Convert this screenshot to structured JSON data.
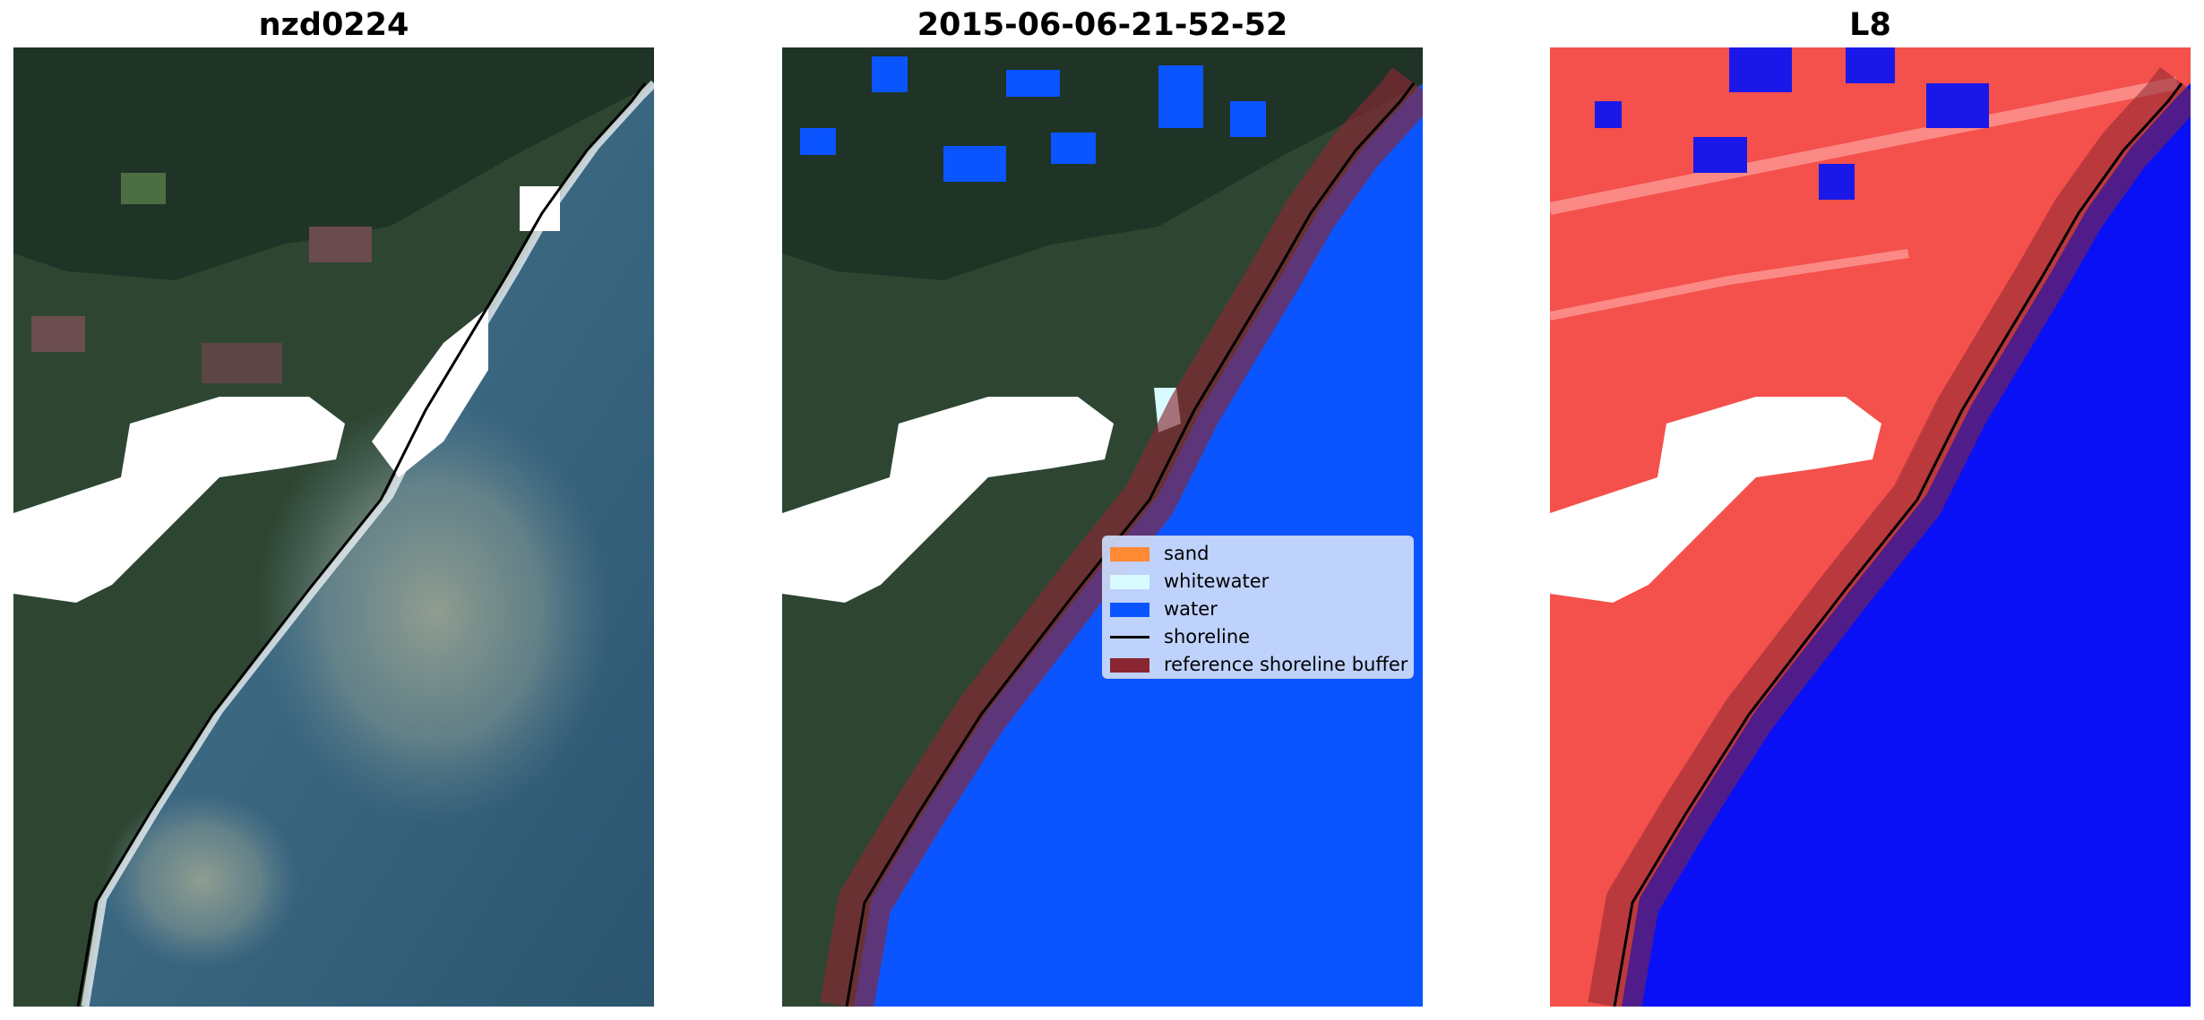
{
  "panels": [
    {
      "title": "nzd0224"
    },
    {
      "title": "2015-06-06-21-52-52"
    },
    {
      "title": "L8"
    }
  ],
  "legend": {
    "items": [
      {
        "label": "sand",
        "color": "#ff8a33",
        "kind": "patch"
      },
      {
        "label": "whitewater",
        "color": "#d8fbff",
        "kind": "patch"
      },
      {
        "label": "water",
        "color": "#0a55ff",
        "kind": "patch"
      },
      {
        "label": "shoreline",
        "color": "#000000",
        "kind": "line"
      },
      {
        "label": "reference shoreline buffer",
        "color": "#8a2632",
        "kind": "patch"
      }
    ]
  },
  "colors": {
    "land_dark": "#26402c",
    "land_green": "#3e5e3a",
    "ocean": "#3d6882",
    "sediment": "#8a9a8e",
    "classified_water": "#0a55ff",
    "buffer": "#8a2632",
    "index_land": "#f4504c",
    "index_water": "#0a10f5",
    "cloud_mask": "#ffffff"
  }
}
